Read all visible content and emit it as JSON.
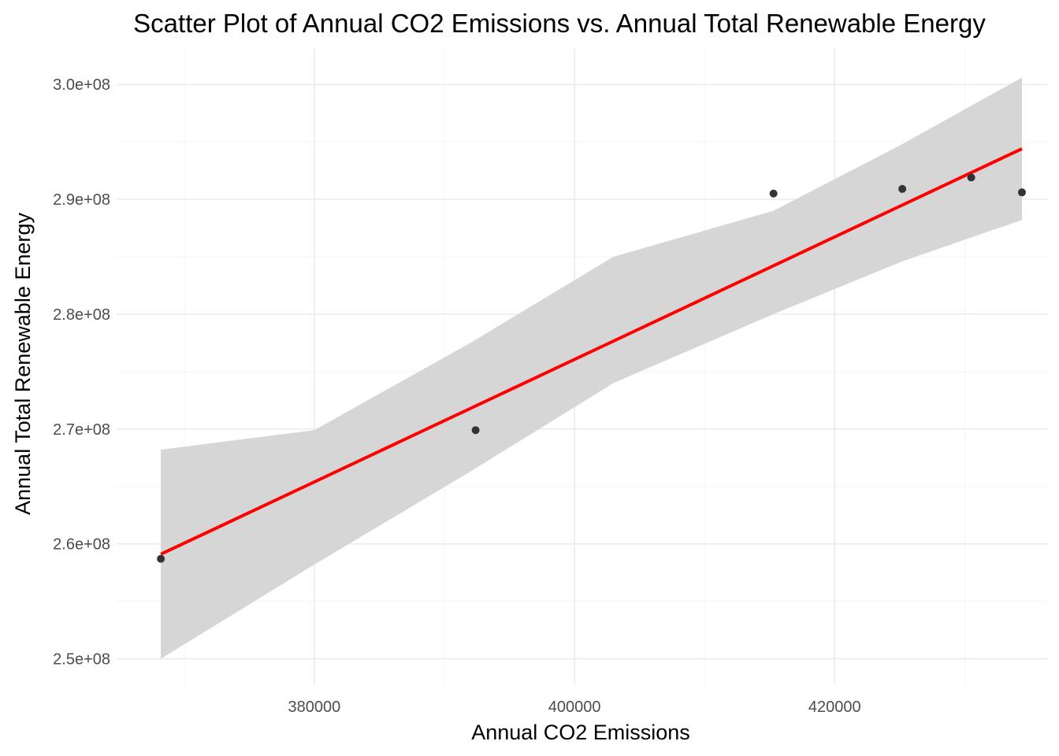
{
  "chart_data": {
    "type": "scatter",
    "title": "Scatter Plot of Annual CO2 Emissions vs. Annual Total Renewable Energy",
    "xlabel": "Annual CO2 Emissions",
    "ylabel": "Annual Total Renewable Energy",
    "xlim": [
      364800,
      436400
    ],
    "ylim": [
      247700000,
      303100000
    ],
    "x_ticks": [
      380000,
      400000,
      420000
    ],
    "x_tick_labels": [
      "380000",
      "400000",
      "420000"
    ],
    "y_ticks": [
      250000000,
      260000000,
      270000000,
      280000000,
      290000000,
      300000000
    ],
    "y_tick_labels": [
      "2.5e+08",
      "2.6e+08",
      "2.7e+08",
      "2.8e+08",
      "2.9e+08",
      "3.0e+08"
    ],
    "grid": true,
    "legend": "none",
    "points": [
      {
        "x": 368200,
        "y": 258700000
      },
      {
        "x": 392400,
        "y": 269900000
      },
      {
        "x": 415300,
        "y": 290500000
      },
      {
        "x": 425200,
        "y": 290900000
      },
      {
        "x": 430500,
        "y": 291900000
      },
      {
        "x": 434400,
        "y": 290600000
      }
    ],
    "fit_line": {
      "x": [
        368200,
        434400
      ],
      "y": [
        259100000,
        294400000
      ]
    },
    "confidence_band": {
      "x": [
        368200,
        380000,
        392000,
        403000,
        415300,
        425200,
        434400
      ],
      "lower": [
        250000000,
        258200000,
        266300000,
        274000000,
        280000000,
        284600000,
        288200000
      ],
      "upper": [
        268200000,
        269900000,
        277500000,
        285000000,
        289000000,
        294800000,
        300600000
      ]
    },
    "colors": {
      "points": "#333333",
      "fit_line": "#ff0000",
      "band": "#d6d6d6",
      "grid_major": "#ebebeb",
      "grid_minor": "#f4f4f4"
    }
  }
}
